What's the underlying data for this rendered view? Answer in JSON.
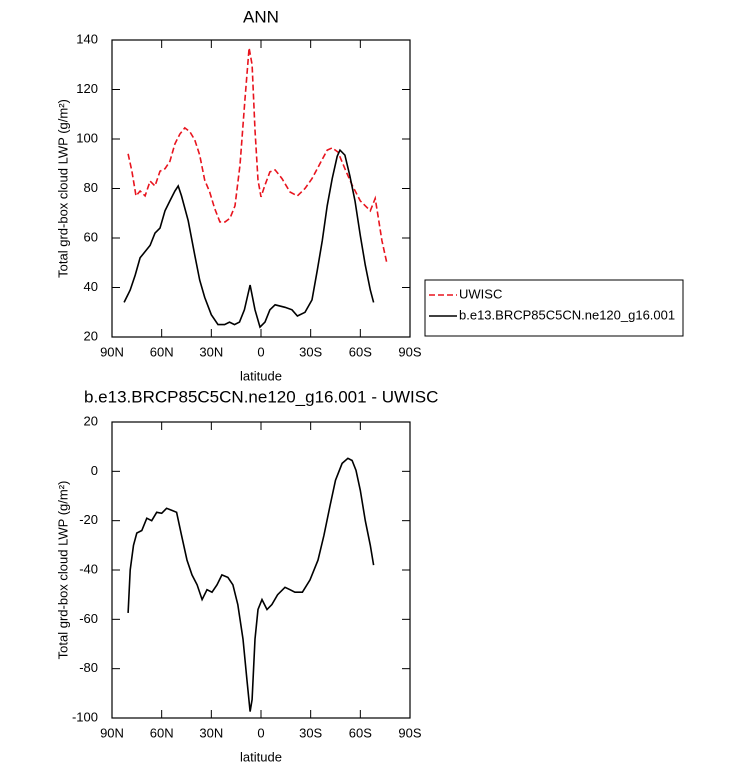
{
  "chart_data": [
    {
      "type": "line",
      "title": "ANN",
      "xlabel": "latitude",
      "ylabel": "Total grd-box cloud LWP (g/m²)",
      "xlim": [
        90,
        -90
      ],
      "xticks": [
        {
          "value": 90,
          "label": "90N"
        },
        {
          "value": 60,
          "label": "60N"
        },
        {
          "value": 30,
          "label": "30N"
        },
        0,
        {
          "value": -30,
          "label": "30S"
        },
        {
          "value": -60,
          "label": "60S"
        },
        {
          "value": -90,
          "label": "90S"
        }
      ],
      "ylim": [
        20,
        140
      ],
      "yticks": [
        20,
        40,
        60,
        80,
        100,
        120,
        140
      ],
      "legend": "right",
      "series": [
        {
          "name": "UWISC",
          "color": "#e8141e",
          "line_style": "dashed",
          "x": [
            80.3,
            78,
            75.5,
            73,
            70,
            67,
            64,
            61,
            58,
            55,
            52,
            49,
            46,
            43,
            40,
            37,
            34,
            31,
            28,
            24.8,
            21.7,
            18.7,
            15.7,
            12.7,
            9.7,
            7.2,
            5.4,
            3.6,
            1.8,
            0,
            -2.4,
            -5.4,
            -8.5,
            -12.7,
            -17.5,
            -22,
            -26.6,
            -30.8,
            -35.6,
            -40,
            -43,
            -46.5,
            -50.7,
            -55,
            -60,
            -63,
            -66,
            -69,
            -70.7,
            -73,
            -76
          ],
          "values": [
            94,
            87,
            77,
            79,
            77,
            83,
            81,
            87,
            88,
            91,
            98,
            102,
            104.5,
            103,
            99.6,
            93.5,
            83.4,
            78.6,
            72,
            66.5,
            66.5,
            68,
            73,
            89.5,
            115.7,
            136.8,
            130,
            103.6,
            83.4,
            76.6,
            81.4,
            86.7,
            87.5,
            84,
            78.6,
            77,
            80,
            84,
            90,
            95.5,
            96.4,
            94.7,
            88,
            81.4,
            75,
            73,
            71,
            76,
            69,
            59,
            50
          ]
        },
        {
          "name": "b.e13.BRCP85C5CN.ne120_g16.001",
          "color": "#000000",
          "line_style": "solid",
          "x": [
            82.7,
            79,
            76,
            73,
            67,
            64,
            61,
            58,
            55,
            52,
            50,
            48,
            44,
            40,
            37,
            34,
            30,
            26,
            22,
            19,
            16,
            13,
            10,
            6.6,
            3.6,
            0.6,
            -2.4,
            -5.4,
            -8.5,
            -14.5,
            -18.7,
            -22,
            -26.6,
            -30.8,
            -34,
            -37,
            -40,
            -43,
            -46,
            -47.7,
            -50.7,
            -53.7,
            -56.8,
            -60,
            -63,
            -66,
            -68
          ],
          "values": [
            34,
            39,
            45,
            52,
            57,
            62,
            64,
            71,
            75,
            79,
            81,
            77,
            67,
            53,
            43,
            36,
            29,
            25,
            25,
            26,
            25,
            26,
            31,
            41,
            31,
            24,
            26,
            31,
            33,
            32,
            31,
            28.5,
            30,
            35,
            47,
            59,
            73,
            84,
            93,
            95.5,
            93.5,
            85,
            75,
            61,
            49,
            39,
            34
          ]
        }
      ]
    },
    {
      "type": "line",
      "title": "b.e13.BRCP85C5CN.ne120_g16.001 - UWISC",
      "xlabel": "latitude",
      "ylabel": "Total grd-box cloud LWP (g/m²)",
      "xlim": [
        90,
        -90
      ],
      "xticks": [
        {
          "value": 90,
          "label": "90N"
        },
        {
          "value": 60,
          "label": "60N"
        },
        {
          "value": 30,
          "label": "30N"
        },
        0,
        {
          "value": -30,
          "label": "30S"
        },
        {
          "value": -60,
          "label": "60S"
        },
        {
          "value": -90,
          "label": "90S"
        }
      ],
      "ylim": [
        -100,
        20
      ],
      "yticks": [
        -100,
        -80,
        -60,
        -40,
        -20,
        0,
        20
      ],
      "series": [
        {
          "color": "#000000",
          "line_style": "solid",
          "x": [
            80.3,
            79,
            77,
            75,
            72,
            69,
            66,
            63,
            60,
            57,
            54,
            51,
            48,
            44.7,
            41.7,
            38.6,
            35.6,
            32.6,
            29.6,
            26.6,
            23.6,
            20,
            17,
            14,
            10.9,
            8.5,
            6.6,
            5.4,
            3.6,
            1.8,
            -0.6,
            -3.6,
            -6.6,
            -10,
            -14.5,
            -17.5,
            -20.5,
            -25,
            -29.6,
            -34.4,
            -38,
            -41.7,
            -45,
            -49,
            -52.5,
            -55,
            -57.4,
            -60,
            -63,
            -66,
            -68
          ],
          "values": [
            -57.4,
            -40,
            -30,
            -25,
            -24,
            -19,
            -20,
            -16.6,
            -17,
            -15,
            -15.8,
            -16.6,
            -25.9,
            -36,
            -42,
            -46,
            -52,
            -48,
            -49,
            -46,
            -42,
            -43,
            -46,
            -54,
            -68,
            -84.4,
            -97.4,
            -92.5,
            -68,
            -56,
            -52,
            -56,
            -54,
            -50,
            -47,
            -48,
            -49,
            -49,
            -44,
            -36,
            -26,
            -14,
            -3.6,
            3.2,
            5.3,
            4.4,
            0.4,
            -7.7,
            -20,
            -30,
            -38
          ]
        }
      ]
    }
  ]
}
